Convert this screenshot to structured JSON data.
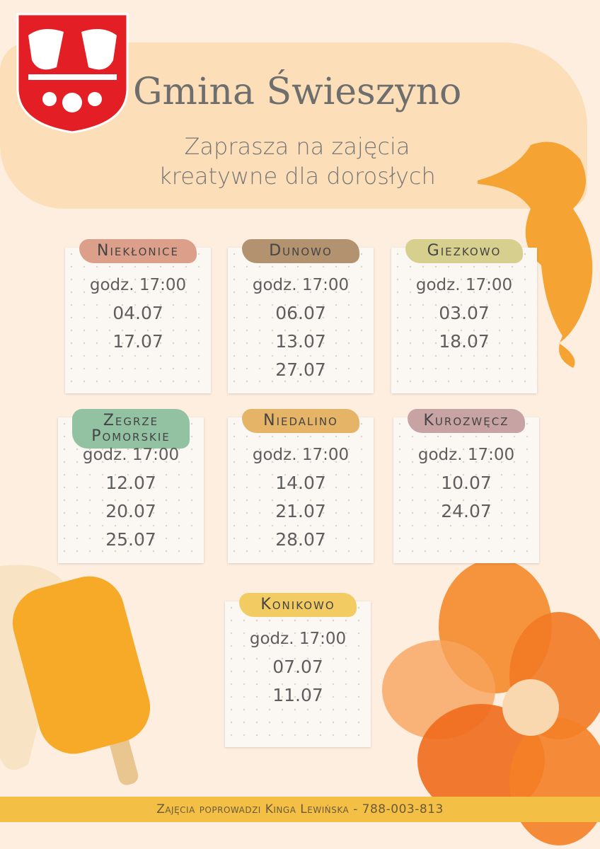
{
  "header": {
    "title": "Gmina Świeszyno",
    "subtitle": [
      "Zaprasza na zajęcia",
      "kreatywne dla dorosłych"
    ]
  },
  "cards": [
    {
      "name": "Niekłonice",
      "time": "godz. 17:00",
      "dates": [
        "04.07",
        "17.07"
      ]
    },
    {
      "name": "Dunowo",
      "time": "godz. 17:00",
      "dates": [
        "06.07",
        "13.07",
        "27.07"
      ]
    },
    {
      "name": "Giezkowo",
      "time": "godz. 17:00",
      "dates": [
        "03.07",
        "18.07"
      ]
    },
    {
      "name": "Zegrze Pomorskie",
      "time": "godz. 17:00",
      "dates": [
        "12.07",
        "20.07",
        "25.07"
      ]
    },
    {
      "name": "Niedalino",
      "time": "godz. 17:00",
      "dates": [
        "14.07",
        "21.07",
        "28.07"
      ]
    },
    {
      "name": "Kurozwęcz",
      "time": "godz. 17:00",
      "dates": [
        "10.07",
        "24.07"
      ]
    },
    {
      "name": "Konikowo",
      "time": "godz. 17:00",
      "dates": [
        "07.07",
        "11.07"
      ]
    }
  ],
  "footer": "Zajęcia poprowadzi Kinga Lewińska - 788-003-813"
}
